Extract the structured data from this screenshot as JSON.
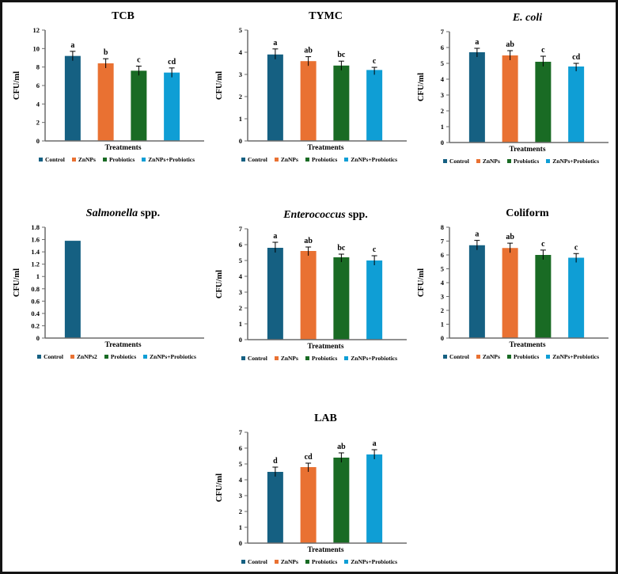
{
  "figure": {
    "background": "#ffffff",
    "border_color": "#141414",
    "axis_color": "#6b6b6b",
    "error_bar_color": "#000000",
    "bar_colors": [
      "#156082",
      "#E97132",
      "#196B24",
      "#0F9ED5"
    ],
    "ylabel": "CFU/ml",
    "xlabel": "Treatments"
  },
  "chart_data": [
    {
      "id": "tcb",
      "type": "bar",
      "title_parts": [
        {
          "text": "TCB",
          "italic": false
        }
      ],
      "ylabel": "CFU/ml",
      "xlabel": "Treatments",
      "ylim": [
        0,
        12
      ],
      "ytick_step": 2,
      "categories": [
        "Control",
        "ZnNPs",
        "Probiotics",
        "ZnNPs+Probiotics"
      ],
      "values": [
        9.2,
        8.4,
        7.6,
        7.4
      ],
      "errors": [
        0.5,
        0.5,
        0.5,
        0.5
      ],
      "letters": [
        "a",
        "b",
        "c",
        "cd"
      ],
      "legend": [
        "Control",
        "ZnNPs",
        "Probiotics",
        "ZnNPs+Probiotics"
      ]
    },
    {
      "id": "tymc",
      "type": "bar",
      "title_parts": [
        {
          "text": "TYMC",
          "italic": false
        }
      ],
      "ylabel": "CFU/ml",
      "xlabel": "Treatments",
      "ylim": [
        0,
        5
      ],
      "ytick_step": 1,
      "categories": [
        "Control",
        "ZnNPs",
        "Probiotics",
        "ZnNPs+Probiotics"
      ],
      "values": [
        3.9,
        3.6,
        3.4,
        3.2
      ],
      "errors": [
        0.25,
        0.2,
        0.2,
        0.12
      ],
      "letters": [
        "a",
        "ab",
        "bc",
        "c"
      ],
      "legend": [
        "Control",
        "ZnNPs",
        "Probiotics",
        "ZnNPs+Probiotics"
      ]
    },
    {
      "id": "ecoli",
      "type": "bar",
      "title_parts": [
        {
          "text": "E. coli",
          "italic": true
        }
      ],
      "ylabel": "CFU/ml",
      "xlabel": "Treatments",
      "ylim": [
        0,
        7
      ],
      "ytick_step": 1,
      "categories": [
        "Control",
        "ZnNPs",
        "Probiotics",
        "ZnNPs+Probiotics"
      ],
      "values": [
        5.7,
        5.5,
        5.1,
        4.8
      ],
      "errors": [
        0.25,
        0.3,
        0.35,
        0.2
      ],
      "letters": [
        "a",
        "ab",
        "c",
        "cd"
      ],
      "legend": [
        "Control",
        "ZnNPs",
        "Probiotics",
        "ZnNPs+Probiotics"
      ]
    },
    {
      "id": "salmonella",
      "type": "bar",
      "title_parts": [
        {
          "text": "Salmonella",
          "italic": true
        },
        {
          "text": " spp.",
          "italic": false
        }
      ],
      "ylabel": "CFU/ml",
      "xlabel": "Treatments",
      "ylim": [
        0,
        1.8
      ],
      "ytick_step": 0.2,
      "categories": [
        "Control",
        "ZnNPs2",
        "Probiotics",
        "ZnNPs+Probiotics"
      ],
      "values": [
        1.58,
        0,
        0,
        0
      ],
      "errors": [
        0,
        0,
        0,
        0
      ],
      "letters": [
        "",
        "",
        "",
        ""
      ],
      "legend": [
        "Control",
        "ZnNPs2",
        "Probiotics",
        "ZnNPs+Probiotics"
      ]
    },
    {
      "id": "enterococcus",
      "type": "bar",
      "title_parts": [
        {
          "text": "Enterococcus",
          "italic": true
        },
        {
          "text": " spp.",
          "italic": false
        }
      ],
      "ylabel": "CFU/ml",
      "xlabel": "Treatments",
      "ylim": [
        0,
        7
      ],
      "ytick_step": 1,
      "categories": [
        "Control",
        "ZnNPs",
        "Probiotics",
        "ZnNPs+Probiotics"
      ],
      "values": [
        5.8,
        5.6,
        5.2,
        5.0
      ],
      "errors": [
        0.35,
        0.25,
        0.2,
        0.3
      ],
      "letters": [
        "a",
        "ab",
        "bc",
        "c"
      ],
      "legend": [
        "Control",
        "ZnNPs",
        "Probiotics",
        "ZnNPs+Probiotics"
      ]
    },
    {
      "id": "coliform",
      "type": "bar",
      "title_parts": [
        {
          "text": "Coliform",
          "italic": false
        }
      ],
      "ylabel": "CFU/ml",
      "xlabel": "Treatments",
      "ylim": [
        0,
        8
      ],
      "ytick_step": 1,
      "categories": [
        "Control",
        "ZnNPs",
        "Probiotics",
        "ZnNPs+Probiotics"
      ],
      "values": [
        6.7,
        6.5,
        6.0,
        5.8
      ],
      "errors": [
        0.35,
        0.35,
        0.35,
        0.3
      ],
      "letters": [
        "a",
        "ab",
        "c",
        "c"
      ],
      "legend": [
        "Control",
        "ZnNPs",
        "Probiotics",
        "ZnNPs+Probiotics"
      ]
    },
    {
      "id": "lab",
      "type": "bar",
      "title_parts": [
        {
          "text": "LAB",
          "italic": false
        }
      ],
      "ylabel": "CFU/ml",
      "xlabel": "Treatments",
      "ylim": [
        0,
        7
      ],
      "ytick_step": 1,
      "categories": [
        "Control",
        "ZnNPs",
        "Probiotics",
        "ZnNPs+Probiotics"
      ],
      "values": [
        4.5,
        4.8,
        5.4,
        5.6
      ],
      "errors": [
        0.3,
        0.25,
        0.3,
        0.3
      ],
      "letters": [
        "d",
        "cd",
        "ab",
        "a"
      ],
      "legend": [
        "Control",
        "ZnNPs",
        "Probiotics",
        "ZnNPs+Probiotics"
      ]
    }
  ]
}
